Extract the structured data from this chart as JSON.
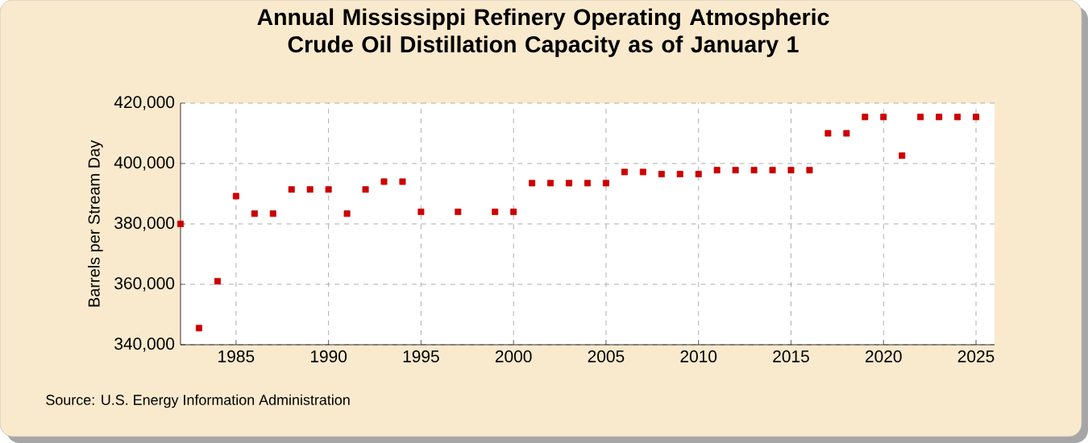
{
  "chart_data": {
    "type": "scatter",
    "title": "Annual Mississippi Refinery Operating Atmospheric Crude Oil Distillation Capacity as of January 1",
    "ylabel": "Barrels per Stream Day",
    "annotations": [
      "Source: U.S. Energy Information Administration"
    ],
    "x": [
      1982,
      1983,
      1984,
      1985,
      1986,
      1987,
      1988,
      1989,
      1990,
      1991,
      1992,
      1993,
      1994,
      1995,
      1997,
      1999,
      2000,
      2001,
      2002,
      2003,
      2004,
      2005,
      2006,
      2007,
      2008,
      2009,
      2010,
      2011,
      2012,
      2013,
      2014,
      2015,
      2016,
      2017,
      2018,
      2019,
      2020,
      2021,
      2022,
      2023,
      2024,
      2025
    ],
    "values": [
      380000,
      345500,
      361000,
      389200,
      383400,
      383400,
      391400,
      391400,
      391400,
      383400,
      391400,
      394000,
      394000,
      384000,
      384000,
      384000,
      384000,
      393500,
      393500,
      393500,
      393500,
      393500,
      397200,
      397200,
      396500,
      396500,
      396500,
      397800,
      397800,
      397800,
      397800,
      397800,
      397800,
      410000,
      410000,
      415400,
      415400,
      402600,
      415400,
      415400,
      415400,
      415400
    ],
    "color": "#cc0000",
    "marker": "square",
    "grid": true,
    "xlim": [
      1982,
      2026
    ],
    "ylim": [
      340000,
      420000
    ],
    "xticks": [
      1985,
      1990,
      1995,
      2000,
      2005,
      2010,
      2015,
      2020,
      2025
    ],
    "yticks": [
      {
        "value": 340000,
        "label": "340,000"
      },
      {
        "value": 360000,
        "label": "360,000"
      },
      {
        "value": 380000,
        "label": "380,000"
      },
      {
        "value": 400000,
        "label": "400,000"
      },
      {
        "value": 420000,
        "label": "420,000"
      }
    ]
  }
}
